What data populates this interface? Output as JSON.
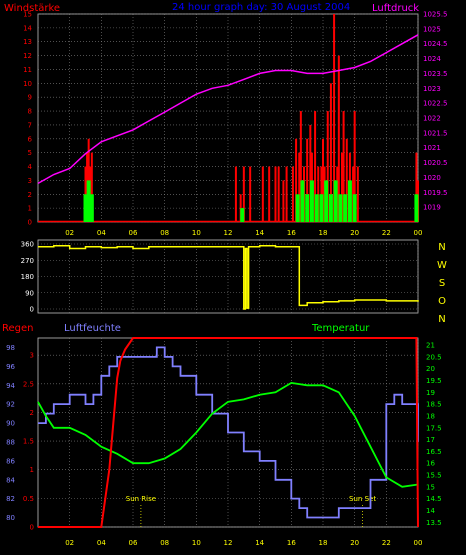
{
  "colors": {
    "wind": "#ff0000",
    "gust": "#00ff00",
    "pressure": "#ff00ff",
    "direction": "#ffff00",
    "rain": "#ff0000",
    "humidity": "#8080ff",
    "temperature": "#00ff00",
    "title": "#0000ff",
    "grid": "#808080",
    "axis_left_top": "#ff0000",
    "axis_right_top": "#ff00ff",
    "axis_dir": "#ffffff",
    "axis_rain": "#ff0000",
    "axis_hum": "#8080ff",
    "axis_temp": "#00ff00",
    "x_ticks": "#ffff00",
    "sun_labels": "#ffff00"
  },
  "chart_data": [
    {
      "type": "bar",
      "title": "24 hour graph day: 30 August 2004",
      "left_label": "Windstärke",
      "right_label": "Luftdruck",
      "x_ticks": [
        "02",
        "04",
        "06",
        "08",
        "10",
        "12",
        "14",
        "16",
        "18",
        "20",
        "22",
        "00"
      ],
      "y_left_ticks": [
        "0",
        "1",
        "2",
        "3",
        "4",
        "5",
        "6",
        "7",
        "8",
        "9",
        "10",
        "11",
        "12",
        "13",
        "14",
        "15"
      ],
      "y_left_range": [
        0,
        15
      ],
      "y_right_ticks": [
        "1019",
        "1019.5",
        "1020",
        "1020.5",
        "1021",
        "1021.5",
        "1022",
        "1022.5",
        "1023",
        "1023.5",
        "1024",
        "1024.5",
        "1025",
        "1025.5"
      ],
      "y_right_range": [
        1018.5,
        1025.5
      ],
      "pressure": {
        "x": [
          0,
          1,
          2,
          3,
          4,
          5,
          6,
          7,
          8,
          9,
          10,
          11,
          12,
          13,
          14,
          15,
          16,
          17,
          18,
          19,
          20,
          21,
          22,
          23,
          24
        ],
        "values": [
          1019.8,
          1020.1,
          1020.3,
          1020.8,
          1021.2,
          1021.4,
          1021.6,
          1021.9,
          1022.2,
          1022.5,
          1022.8,
          1023.0,
          1023.1,
          1023.3,
          1023.5,
          1023.6,
          1023.6,
          1023.5,
          1023.5,
          1023.6,
          1023.7,
          1023.9,
          1024.2,
          1024.5,
          1024.8
        ]
      },
      "wind": {
        "x": [
          3.0,
          3.1,
          3.2,
          3.3,
          3.4,
          12.5,
          12.8,
          13.0,
          13.4,
          14.2,
          14.6,
          15.0,
          15.2,
          15.5,
          15.7,
          16.1,
          16.3,
          16.5,
          16.6,
          16.8,
          17.0,
          17.2,
          17.3,
          17.5,
          17.7,
          17.9,
          18.0,
          18.1,
          18.3,
          18.5,
          18.7,
          18.9,
          19.0,
          19.2,
          19.3,
          19.5,
          19.7,
          19.9,
          20.0,
          20.2,
          23.9,
          24.0
        ],
        "values": [
          4,
          5,
          6,
          4,
          5,
          4,
          2,
          4,
          4,
          4,
          4,
          4,
          4,
          3,
          4,
          4,
          6,
          5,
          8,
          4,
          6,
          7,
          5,
          8,
          4,
          4,
          6,
          4,
          8,
          10,
          15,
          4,
          12,
          5,
          8,
          6,
          5,
          4,
          8,
          4,
          5,
          3
        ]
      },
      "gust": {
        "x": [
          3.0,
          3.2,
          3.4,
          12.9,
          16.4,
          16.7,
          17.0,
          17.3,
          17.6,
          17.9,
          18.2,
          18.5,
          18.8,
          19.1,
          19.4,
          19.7,
          20.0,
          23.9
        ],
        "values": [
          2,
          3,
          2,
          1,
          2,
          3,
          2,
          3,
          2,
          2,
          3,
          2,
          3,
          2,
          2,
          3,
          2,
          2
        ]
      }
    },
    {
      "type": "line",
      "y_ticks": [
        "360",
        "270",
        "180",
        "90",
        "0"
      ],
      "y_range": [
        0,
        360
      ],
      "direction_labels": [
        "N",
        "W",
        "S",
        "O",
        "N"
      ],
      "direction": {
        "x": [
          0,
          0.5,
          1,
          2,
          3,
          4,
          5,
          6,
          7,
          8,
          9,
          10,
          11,
          12,
          12.9,
          13.0,
          13.1,
          13.2,
          13.3,
          14,
          15,
          16,
          16.4,
          16.5,
          17,
          18,
          19,
          20,
          21,
          22,
          23,
          24
        ],
        "values": [
          345,
          345,
          350,
          335,
          345,
          340,
          345,
          335,
          345,
          345,
          345,
          345,
          345,
          345,
          345,
          0,
          335,
          5,
          345,
          350,
          345,
          345,
          345,
          20,
          35,
          40,
          45,
          50,
          50,
          45,
          45,
          40
        ]
      }
    },
    {
      "type": "line",
      "rain_label": "Regen",
      "humidity_label": "Luftfeuchte",
      "temperature_label": "Temperatur",
      "x_ticks": [
        "02",
        "04",
        "06",
        "08",
        "10",
        "12",
        "14",
        "16",
        "18",
        "20",
        "22",
        "00"
      ],
      "rain_ticks": [
        "0",
        "0.5",
        "1",
        "1.5",
        "2",
        "2.5",
        "3"
      ],
      "rain_range": [
        0,
        3.3
      ],
      "humidity_ticks": [
        "80",
        "82",
        "84",
        "86",
        "88",
        "90",
        "92",
        "94",
        "96",
        "98"
      ],
      "humidity_range": [
        79,
        99
      ],
      "temperature_ticks": [
        "13.5",
        "14",
        "14.5",
        "15",
        "15.5",
        "16",
        "16.5",
        "17",
        "17.5",
        "18",
        "18.5",
        "19",
        "19.5",
        "20",
        "20.5",
        "21"
      ],
      "temperature_range": [
        13.3,
        21.3
      ],
      "annotations": [
        {
          "label": "Sun Rise",
          "x": 6.5
        },
        {
          "label": "Sun Set",
          "x": 20.5
        }
      ],
      "rain": {
        "x": [
          0,
          4,
          4.5,
          5,
          5.2,
          5.5,
          6,
          6.5,
          23.9,
          24
        ],
        "values": [
          0,
          0,
          1,
          2.6,
          2.9,
          3.1,
          3.3,
          3.3,
          3.3,
          0
        ]
      },
      "humidity": {
        "x": [
          0,
          0.5,
          1,
          1.5,
          2,
          3,
          3.5,
          4,
          4.5,
          5,
          6,
          7,
          7.5,
          8,
          8.5,
          9,
          10,
          11,
          12,
          13,
          14,
          15,
          16,
          16.5,
          17,
          18,
          19,
          20,
          21,
          22,
          22.5,
          23,
          24
        ],
        "values": [
          90,
          91,
          92,
          92,
          93,
          92,
          93,
          95,
          96,
          97,
          97,
          97,
          98,
          97,
          96,
          95,
          93,
          91,
          89,
          87,
          86,
          84,
          82,
          81,
          80,
          80,
          81,
          81,
          84,
          92,
          93,
          92,
          88
        ]
      },
      "temperature": {
        "x": [
          0,
          0.5,
          1,
          2,
          3,
          4,
          5,
          6,
          7,
          8,
          9,
          10,
          11,
          12,
          13,
          14,
          15,
          16,
          17,
          18,
          19,
          20,
          21,
          22,
          23,
          24
        ],
        "values": [
          18.6,
          18.0,
          17.5,
          17.5,
          17.2,
          16.7,
          16.4,
          16.0,
          16.0,
          16.2,
          16.6,
          17.3,
          18.1,
          18.6,
          18.7,
          18.9,
          19.0,
          19.4,
          19.3,
          19.3,
          19.0,
          18.0,
          16.7,
          15.4,
          15.0,
          15.1
        ]
      }
    }
  ]
}
